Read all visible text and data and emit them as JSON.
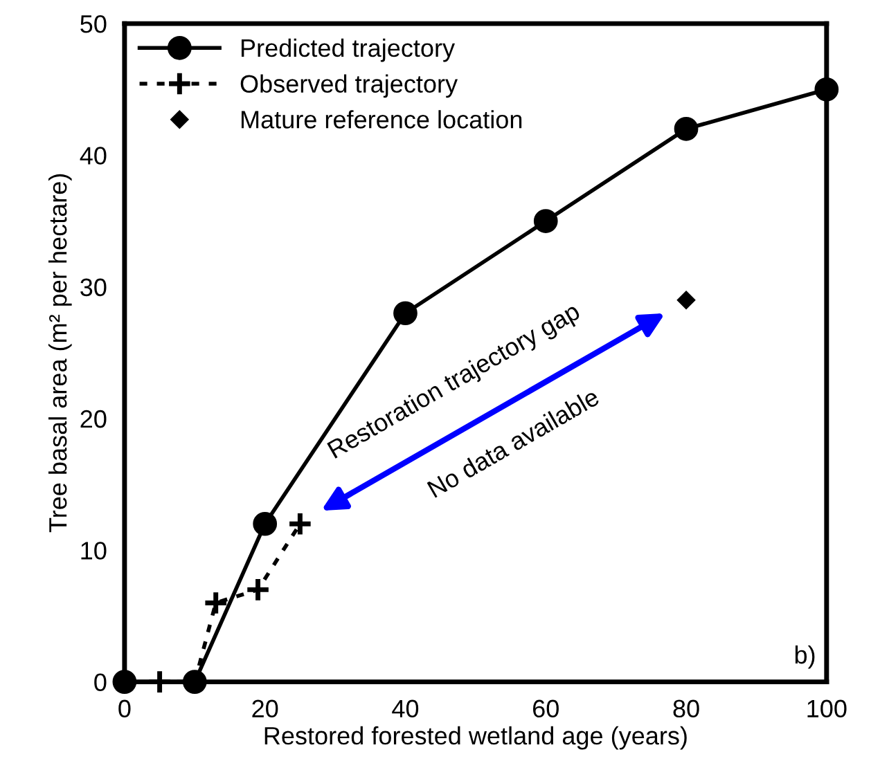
{
  "chart_data": {
    "type": "line",
    "xlabel": "Restored forested wetland age (years)",
    "ylabel": "Tree basal area (m² per hectare)",
    "xlim": [
      0,
      100
    ],
    "ylim": [
      0,
      50
    ],
    "xticks": [
      0,
      20,
      40,
      60,
      80,
      100
    ],
    "yticks": [
      0,
      10,
      20,
      30,
      40,
      50
    ],
    "grid": false,
    "legend": "top left",
    "series": [
      {
        "name": "Predicted trajectory",
        "color": "#000000",
        "x": [
          0,
          10,
          20,
          40,
          60,
          80,
          100
        ],
        "values": [
          0,
          0,
          12,
          28,
          35,
          42,
          45
        ],
        "marker": "circle",
        "line_style": "solid"
      },
      {
        "name": "Observed trajectory",
        "color": "#000000",
        "x": [
          5,
          10,
          13,
          19,
          25
        ],
        "values": [
          0,
          0,
          6,
          7,
          12
        ],
        "marker": "cross",
        "line_style": "dotted"
      },
      {
        "name": "Mature reference location",
        "type": "scatter",
        "color": "#000000",
        "x": [
          80
        ],
        "values": [
          29
        ],
        "marker": "diamond"
      }
    ],
    "annotations": [
      "Restoration trajectory gap",
      "No data available",
      "b)"
    ]
  }
}
